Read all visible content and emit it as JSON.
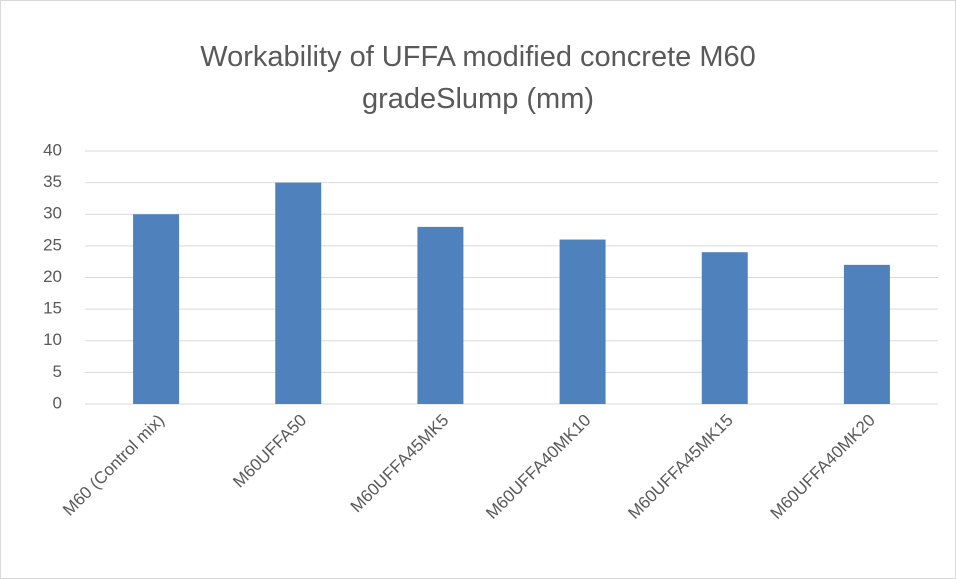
{
  "chart_data": {
    "type": "bar",
    "title": "Workability of UFFA modified concrete M60 gradeSlump (mm)",
    "categories": [
      "M60 (Control mix)",
      "M60UFFA50",
      "M60UFFA45MK5",
      "M60UFFA40MK10",
      "M60UFFA45MK15",
      "M60UFFA40MK20"
    ],
    "values": [
      30,
      35,
      28,
      26,
      24,
      22
    ],
    "color": "#4f81bd",
    "ylim": [
      0,
      40
    ],
    "yticks": [
      0,
      5,
      10,
      15,
      20,
      25,
      30,
      35,
      40
    ],
    "grid": true
  }
}
